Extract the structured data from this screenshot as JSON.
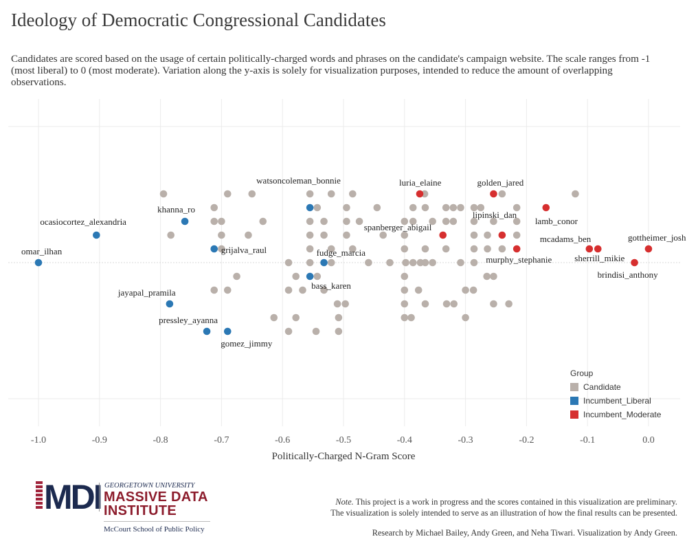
{
  "title": "Ideology of Democratic Congressional Candidates",
  "subtitle": "Candidates are scored based on the usage of certain politically-charged words and phrases on the candidate's campaign website. The scale ranges from -1 (most liberal) to 0 (most moderate). Variation along the y-axis is solely for visualization purposes, intended to reduce the amount of overlapping observations.",
  "footer": {
    "note_label": "Note.",
    "note_text": " This project is a work in progress and the scores contained in this visualization are preliminary.",
    "note_text2": "The visualization is solely intended to serve as an illustration of how the final results can be presented.",
    "credits": "Research by Michael Bailey, Andy Green, and Neha Tiwari. Visualization by Andy Green."
  },
  "logo": {
    "mark": "MDI",
    "university": "GEORGETOWN UNIVERSITY",
    "name_line1": "MASSIVE DATA",
    "name_line2": "INSTITUTE",
    "school": "McCourt School of Public Policy"
  },
  "colors": {
    "Candidate": "#b9b0aa",
    "Incumbent_Liberal": "#2b78b4",
    "Incumbent_Moderate": "#d62f2f",
    "grid": "#ebebeb"
  },
  "chart_data": {
    "type": "scatter",
    "title": "Ideology of Democratic Congressional Candidates",
    "xlabel": "Politically-Charged N-Gram Score",
    "ylabel": "",
    "xlim": [
      -1.05,
      0.03
    ],
    "ylim": [
      -5,
      5
    ],
    "x_ticks": [
      "-1.0",
      "-0.9",
      "-0.8",
      "-0.7",
      "-0.6",
      "-0.5",
      "-0.4",
      "-0.3",
      "-0.2",
      "-0.1",
      "0.0"
    ],
    "x_tick_values": [
      -1.0,
      -0.9,
      -0.8,
      -0.7,
      -0.6,
      -0.5,
      -0.4,
      -0.3,
      -0.2,
      -0.1,
      0.0
    ],
    "grid": true,
    "legend": {
      "title": "Group",
      "position": "bottom-right",
      "entries": [
        "Candidate",
        "Incumbent_Liberal",
        "Incumbent_Moderate"
      ]
    },
    "labeled_points": [
      {
        "name": "omar_ilhan",
        "group": "Incumbent_Liberal",
        "x": -1.0,
        "y": 0
      },
      {
        "name": "ocasiocortez_alexandria",
        "group": "Incumbent_Liberal",
        "x": -0.905,
        "y": 2
      },
      {
        "name": "khanna_ro",
        "group": "Incumbent_Liberal",
        "x": -0.76,
        "y": 3
      },
      {
        "name": "grijalva_raul",
        "group": "Incumbent_Liberal",
        "x": -0.712,
        "y": 1
      },
      {
        "name": "jayapal_pramila",
        "group": "Incumbent_Liberal",
        "x": -0.785,
        "y": -3
      },
      {
        "name": "pressley_ayanna",
        "group": "Incumbent_Liberal",
        "x": -0.724,
        "y": -5
      },
      {
        "name": "gomez_jimmy",
        "group": "Incumbent_Liberal",
        "x": -0.69,
        "y": -5
      },
      {
        "name": "watsoncoleman_bonnie",
        "group": "Incumbent_Liberal",
        "x": -0.555,
        "y": 4
      },
      {
        "name": "fudge_marcia",
        "group": "Incumbent_Liberal",
        "x": -0.532,
        "y": 0
      },
      {
        "name": "bass_karen",
        "group": "Incumbent_Liberal",
        "x": -0.555,
        "y": -1
      },
      {
        "name": "luria_elaine",
        "group": "Incumbent_Moderate",
        "x": -0.375,
        "y": 5
      },
      {
        "name": "golden_jared",
        "group": "Incumbent_Moderate",
        "x": -0.254,
        "y": 5
      },
      {
        "name": "lipinski_dan",
        "group": "Incumbent_Moderate",
        "x": -0.24,
        "y": 2
      },
      {
        "name": "spanberger_abigail",
        "group": "Incumbent_Moderate",
        "x": -0.337,
        "y": 2
      },
      {
        "name": "lamb_conor",
        "group": "Incumbent_Moderate",
        "x": -0.168,
        "y": 4
      },
      {
        "name": "murphy_stephanie",
        "group": "Incumbent_Moderate",
        "x": -0.216,
        "y": 1
      },
      {
        "name": "mcadams_ben",
        "group": "Incumbent_Moderate",
        "x": -0.097,
        "y": 1
      },
      {
        "name": "sherrill_mikie",
        "group": "Incumbent_Moderate",
        "x": -0.083,
        "y": 1
      },
      {
        "name": "gottheimer_josh",
        "group": "Incumbent_Moderate",
        "x": 0.0,
        "y": 1
      },
      {
        "name": "brindisi_anthony",
        "group": "Incumbent_Moderate",
        "x": -0.023,
        "y": 0
      }
    ],
    "unlabeled_points": {
      "group": "Candidate",
      "points": [
        [
          -0.795,
          5
        ],
        [
          -0.69,
          5
        ],
        [
          -0.65,
          5
        ],
        [
          -0.555,
          5
        ],
        [
          -0.52,
          5
        ],
        [
          -0.485,
          5
        ],
        [
          -0.367,
          5
        ],
        [
          -0.24,
          5
        ],
        [
          -0.12,
          5
        ],
        [
          -0.712,
          4
        ],
        [
          -0.543,
          4
        ],
        [
          -0.495,
          4
        ],
        [
          -0.445,
          4
        ],
        [
          -0.386,
          4
        ],
        [
          -0.366,
          4
        ],
        [
          -0.332,
          4
        ],
        [
          -0.32,
          4
        ],
        [
          -0.308,
          4
        ],
        [
          -0.286,
          4
        ],
        [
          -0.275,
          4
        ],
        [
          -0.216,
          4
        ],
        [
          -0.712,
          3
        ],
        [
          -0.7,
          3
        ],
        [
          -0.632,
          3
        ],
        [
          -0.555,
          3
        ],
        [
          -0.532,
          3
        ],
        [
          -0.495,
          3
        ],
        [
          -0.474,
          3
        ],
        [
          -0.4,
          3
        ],
        [
          -0.386,
          3
        ],
        [
          -0.354,
          3
        ],
        [
          -0.332,
          3
        ],
        [
          -0.32,
          3
        ],
        [
          -0.286,
          3
        ],
        [
          -0.254,
          3
        ],
        [
          -0.216,
          3
        ],
        [
          -0.783,
          2
        ],
        [
          -0.7,
          2
        ],
        [
          -0.656,
          2
        ],
        [
          -0.555,
          2
        ],
        [
          -0.532,
          2
        ],
        [
          -0.495,
          2
        ],
        [
          -0.435,
          2
        ],
        [
          -0.4,
          2
        ],
        [
          -0.286,
          2
        ],
        [
          -0.264,
          2
        ],
        [
          -0.216,
          2
        ],
        [
          -0.7,
          1
        ],
        [
          -0.555,
          1
        ],
        [
          -0.52,
          1
        ],
        [
          -0.485,
          1
        ],
        [
          -0.4,
          1
        ],
        [
          -0.366,
          1
        ],
        [
          -0.332,
          1
        ],
        [
          -0.286,
          1
        ],
        [
          -0.264,
          1
        ],
        [
          -0.24,
          1
        ],
        [
          -0.59,
          0
        ],
        [
          -0.555,
          0
        ],
        [
          -0.52,
          0
        ],
        [
          -0.459,
          0
        ],
        [
          -0.424,
          0
        ],
        [
          -0.398,
          0
        ],
        [
          -0.386,
          0
        ],
        [
          -0.374,
          0
        ],
        [
          -0.366,
          0
        ],
        [
          -0.354,
          0
        ],
        [
          -0.308,
          0
        ],
        [
          -0.286,
          0
        ],
        [
          -0.675,
          -1
        ],
        [
          -0.578,
          -1
        ],
        [
          -0.543,
          -1
        ],
        [
          -0.4,
          -1
        ],
        [
          -0.265,
          -1
        ],
        [
          -0.254,
          -1
        ],
        [
          -0.712,
          -2
        ],
        [
          -0.69,
          -2
        ],
        [
          -0.59,
          -2
        ],
        [
          -0.567,
          -2
        ],
        [
          -0.532,
          -2
        ],
        [
          -0.4,
          -2
        ],
        [
          -0.377,
          -2
        ],
        [
          -0.3,
          -2
        ],
        [
          -0.287,
          -2
        ],
        [
          -0.51,
          -3
        ],
        [
          -0.497,
          -3
        ],
        [
          -0.4,
          -3
        ],
        [
          -0.366,
          -3
        ],
        [
          -0.331,
          -3
        ],
        [
          -0.319,
          -3
        ],
        [
          -0.254,
          -3
        ],
        [
          -0.229,
          -3
        ],
        [
          -0.614,
          -4
        ],
        [
          -0.578,
          -4
        ],
        [
          -0.508,
          -4
        ],
        [
          -0.4,
          -4
        ],
        [
          -0.389,
          -4
        ],
        [
          -0.3,
          -4
        ],
        [
          -0.59,
          -5
        ],
        [
          -0.545,
          -5
        ],
        [
          -0.508,
          -5
        ]
      ]
    }
  }
}
